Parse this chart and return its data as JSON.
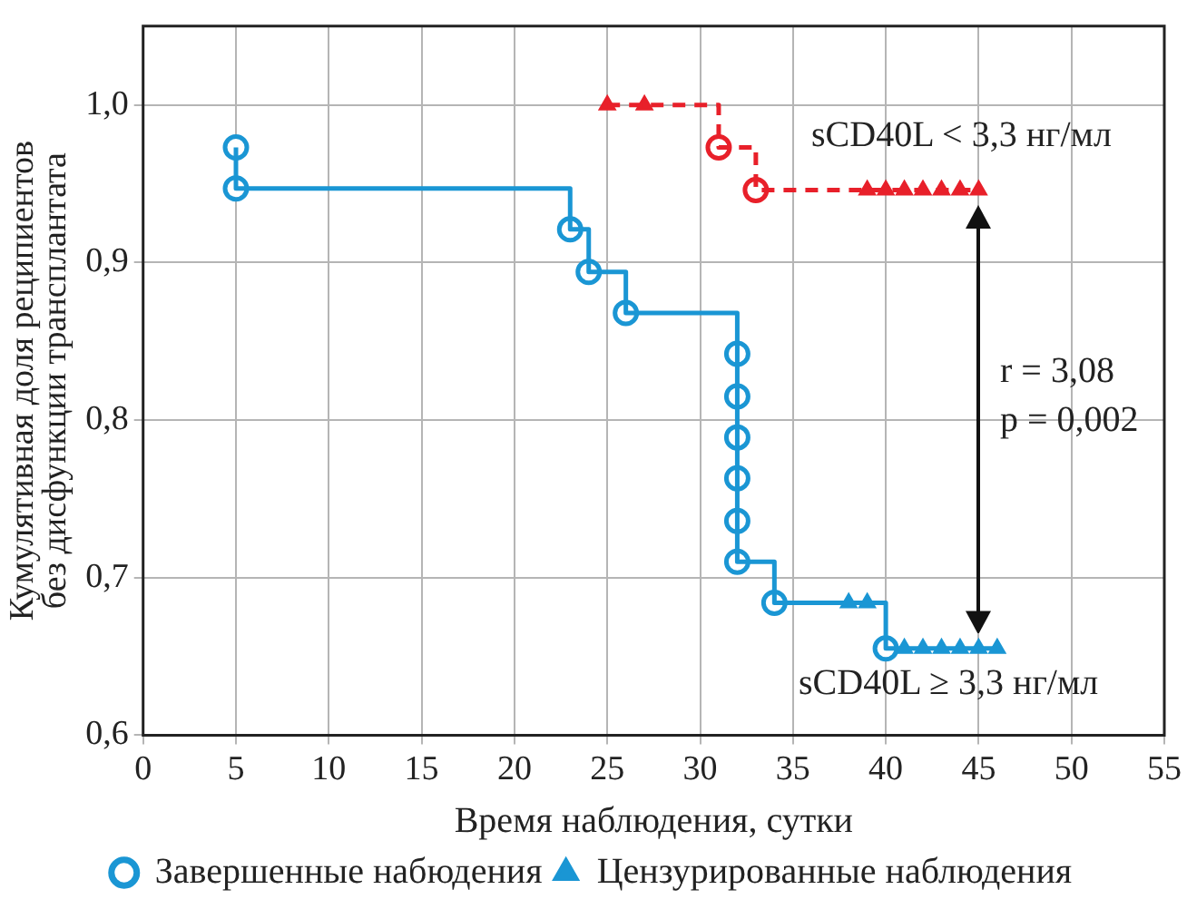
{
  "chart_data": {
    "type": "step",
    "xlabel": "Время наблюдения, сутки",
    "ylabel": "Кумулятивная доля реципиентов без дисфункции трансплантата",
    "xlim": [
      0,
      55
    ],
    "xticks": [
      0,
      5,
      10,
      15,
      20,
      25,
      30,
      35,
      40,
      45,
      50,
      55
    ],
    "ylim": [
      0.6,
      1.05
    ],
    "yticks": [
      {
        "value": 0.6,
        "label": "0,6"
      },
      {
        "value": 0.7,
        "label": "0,7"
      },
      {
        "value": 0.8,
        "label": "0,8"
      },
      {
        "value": 0.9,
        "label": "0,9"
      },
      {
        "value": 1.0,
        "label": "1,0"
      }
    ],
    "grid": true,
    "legend": "bottom",
    "series": [
      {
        "color": "#1a96d4",
        "line_style": "solid",
        "marker": "none",
        "x": [
          5,
          5,
          23,
          24,
          26,
          32,
          34,
          40,
          46
        ],
        "values": [
          0.973,
          0.947,
          0.921,
          0.894,
          0.868,
          0.71,
          0.684,
          0.655,
          0.655
        ]
      },
      {
        "color": "#e8202a",
        "line_style": "dashed",
        "marker": "none",
        "x": [
          25,
          31,
          33,
          45
        ],
        "values": [
          1.0,
          0.973,
          0.946,
          0.946
        ]
      },
      {
        "type": "scatter",
        "name": "Завершенные набюдения",
        "color": "#1a96d4",
        "marker": "circle",
        "x": [
          5,
          5,
          23,
          24,
          26,
          32,
          32,
          32,
          32,
          32,
          32,
          34,
          40,
          31,
          33
        ],
        "values": [
          0.973,
          0.947,
          0.921,
          0.894,
          0.868,
          0.842,
          0.815,
          0.789,
          0.763,
          0.736,
          0.71,
          0.684,
          0.655,
          0.973,
          0.946
        ],
        "colors": [
          "#1a96d4",
          "#1a96d4",
          "#1a96d4",
          "#1a96d4",
          "#1a96d4",
          "#1a96d4",
          "#1a96d4",
          "#1a96d4",
          "#1a96d4",
          "#1a96d4",
          "#1a96d4",
          "#1a96d4",
          "#1a96d4",
          "#e8202a",
          "#e8202a"
        ]
      },
      {
        "type": "scatter",
        "name": "Цензурированные наблюдения",
        "color": "#1a96d4",
        "marker": "triangle",
        "x": [
          38,
          39,
          41,
          42,
          43,
          44,
          45,
          46,
          25,
          27,
          39,
          40,
          41,
          42,
          43,
          44,
          45
        ],
        "values": [
          0.684,
          0.684,
          0.655,
          0.655,
          0.655,
          0.655,
          0.655,
          0.655,
          1.0,
          1.0,
          0.946,
          0.946,
          0.946,
          0.946,
          0.946,
          0.946,
          0.946
        ],
        "colors": [
          "#1a96d4",
          "#1a96d4",
          "#1a96d4",
          "#1a96d4",
          "#1a96d4",
          "#1a96d4",
          "#1a96d4",
          "#1a96d4",
          "#e8202a",
          "#e8202a",
          "#e8202a",
          "#e8202a",
          "#e8202a",
          "#e8202a",
          "#e8202a",
          "#e8202a",
          "#e8202a"
        ]
      }
    ],
    "annotations": [
      "sCD40L < 3,3 нг/мл",
      "sCD40L ≥ 3,3 нг/мл",
      "r = 3,08",
      "p = 0,002"
    ]
  }
}
